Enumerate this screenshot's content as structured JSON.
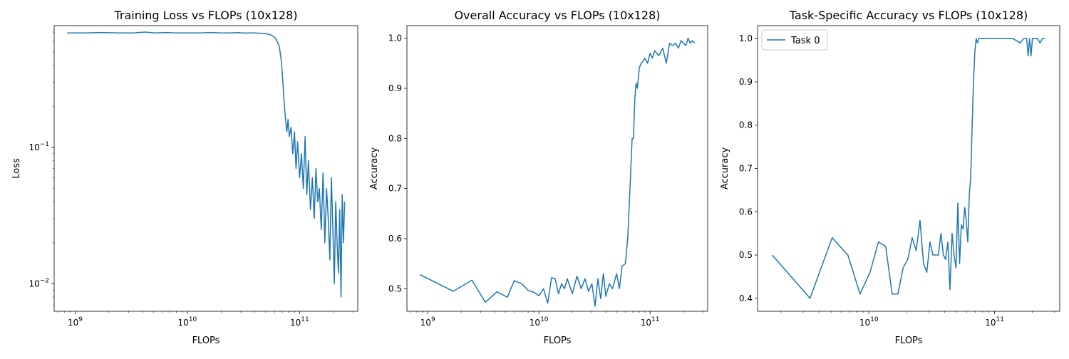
{
  "colors": {
    "line": "#1f77b4",
    "axis": "#000000",
    "background": "#ffffff"
  },
  "chart_data": [
    {
      "type": "line",
      "title": "Training Loss vs FLOPs (10x128)",
      "xlabel": "FLOPs",
      "ylabel": "Loss",
      "xscale": "log",
      "yscale": "log",
      "xlim": [
        650000000.0,
        330000000000.0
      ],
      "ylim": [
        0.0063,
        0.78
      ],
      "xticks": [
        {
          "value": 1000000000.0,
          "base": "10",
          "exp": "9"
        },
        {
          "value": 10000000000.0,
          "base": "10",
          "exp": "10"
        },
        {
          "value": 100000000000.0,
          "base": "10",
          "exp": "11"
        }
      ],
      "yticks": [
        {
          "value": 0.1,
          "base": "10",
          "exp": "−1"
        },
        {
          "value": 0.01,
          "base": "10",
          "exp": "−2"
        }
      ],
      "grid": false,
      "legend": null,
      "series": [
        {
          "x": [
            850000000.0,
            1200000000.0,
            1700000000.0,
            2500000000.0,
            3300000000.0,
            4200000000.0,
            5200000000.0,
            6500000000.0,
            8000000000.0,
            10000000000.0,
            13000000000.0,
            16000000000.0,
            20000000000.0,
            24000000000.0,
            28000000000.0,
            32000000000.0,
            36000000000.0,
            40000000000.0,
            45000000000.0,
            50000000000.0,
            55000000000.0,
            60000000000.0,
            63000000000.0,
            66000000000.0,
            69000000000.0,
            71000000000.0,
            73000000000.0,
            75000000000.0,
            77000000000.0,
            79000000000.0,
            81000000000.0,
            84000000000.0,
            87000000000.0,
            90000000000.0,
            93000000000.0,
            96000000000.0,
            100000000000.0,
            104000000000.0,
            108000000000.0,
            112000000000.0,
            116000000000.0,
            120000000000.0,
            125000000000.0,
            130000000000.0,
            135000000000.0,
            140000000000.0,
            145000000000.0,
            150000000000.0,
            156000000000.0,
            162000000000.0,
            168000000000.0,
            174000000000.0,
            180000000000.0,
            186000000000.0,
            192000000000.0,
            198000000000.0,
            204000000000.0,
            210000000000.0,
            216000000000.0,
            222000000000.0,
            228000000000.0,
            234000000000.0,
            240000000000.0,
            246000000000.0,
            252000000000.0
          ],
          "y": [
            0.69,
            0.69,
            0.695,
            0.69,
            0.69,
            0.7,
            0.69,
            0.695,
            0.69,
            0.69,
            0.69,
            0.695,
            0.69,
            0.69,
            0.693,
            0.688,
            0.69,
            0.69,
            0.685,
            0.68,
            0.67,
            0.64,
            0.6,
            0.55,
            0.42,
            0.3,
            0.21,
            0.16,
            0.13,
            0.16,
            0.12,
            0.14,
            0.09,
            0.13,
            0.07,
            0.11,
            0.06,
            0.09,
            0.05,
            0.12,
            0.045,
            0.08,
            0.035,
            0.06,
            0.03,
            0.07,
            0.04,
            0.05,
            0.025,
            0.065,
            0.02,
            0.05,
            0.03,
            0.015,
            0.06,
            0.025,
            0.01,
            0.04,
            0.02,
            0.012,
            0.035,
            0.008,
            0.045,
            0.02,
            0.04
          ]
        }
      ]
    },
    {
      "type": "line",
      "title": "Overall Accuracy vs FLOPs (10x128)",
      "xlabel": "FLOPs",
      "ylabel": "Accuracy",
      "xscale": "log",
      "yscale": "linear",
      "xlim": [
        650000000.0,
        330000000000.0
      ],
      "ylim": [
        0.455,
        1.025
      ],
      "xticks": [
        {
          "value": 1000000000.0,
          "base": "10",
          "exp": "9"
        },
        {
          "value": 10000000000.0,
          "base": "10",
          "exp": "10"
        },
        {
          "value": 100000000000.0,
          "base": "10",
          "exp": "11"
        }
      ],
      "yticks": [
        {
          "value": 0.5,
          "label": "0.5"
        },
        {
          "value": 0.6,
          "label": "0.6"
        },
        {
          "value": 0.7,
          "label": "0.7"
        },
        {
          "value": 0.8,
          "label": "0.8"
        },
        {
          "value": 0.9,
          "label": "0.9"
        },
        {
          "value": 1.0,
          "label": "1.0"
        }
      ],
      "grid": false,
      "legend": null,
      "series": [
        {
          "x": [
            850000000.0,
            1700000000.0,
            2500000000.0,
            3300000000.0,
            4200000000.0,
            5200000000.0,
            6000000000.0,
            7000000000.0,
            8000000000.0,
            9000000000.0,
            10000000000.0,
            11000000000.0,
            12000000000.0,
            13000000000.0,
            14000000000.0,
            15000000000.0,
            16000000000.0,
            17000000000.0,
            18000000000.0,
            20000000000.0,
            22000000000.0,
            24000000000.0,
            26000000000.0,
            28000000000.0,
            30000000000.0,
            32000000000.0,
            34000000000.0,
            36000000000.0,
            38000000000.0,
            40000000000.0,
            43000000000.0,
            46000000000.0,
            50000000000.0,
            53000000000.0,
            56000000000.0,
            60000000000.0,
            63000000000.0,
            66000000000.0,
            69000000000.0,
            71000000000.0,
            73000000000.0,
            75000000000.0,
            77000000000.0,
            80000000000.0,
            83000000000.0,
            87000000000.0,
            90000000000.0,
            95000000000.0,
            100000000000.0,
            105000000000.0,
            110000000000.0,
            115000000000.0,
            120000000000.0,
            130000000000.0,
            140000000000.0,
            150000000000.0,
            160000000000.0,
            170000000000.0,
            180000000000.0,
            190000000000.0,
            200000000000.0,
            210000000000.0,
            220000000000.0,
            230000000000.0,
            240000000000.0,
            252000000000.0
          ],
          "y": [
            0.528,
            0.495,
            0.517,
            0.473,
            0.494,
            0.483,
            0.516,
            0.51,
            0.497,
            0.493,
            0.486,
            0.5,
            0.471,
            0.522,
            0.52,
            0.49,
            0.51,
            0.5,
            0.52,
            0.49,
            0.525,
            0.5,
            0.52,
            0.495,
            0.51,
            0.465,
            0.52,
            0.48,
            0.53,
            0.485,
            0.51,
            0.5,
            0.53,
            0.5,
            0.545,
            0.55,
            0.6,
            0.7,
            0.8,
            0.8,
            0.88,
            0.91,
            0.9,
            0.94,
            0.95,
            0.955,
            0.96,
            0.95,
            0.97,
            0.96,
            0.975,
            0.97,
            0.965,
            0.98,
            0.95,
            0.99,
            0.985,
            0.99,
            0.98,
            0.995,
            0.99,
            0.985,
            1.0,
            0.99,
            0.995,
            0.99
          ]
        }
      ]
    },
    {
      "type": "line",
      "title": "Task-Specific Accuracy vs FLOPs (10x128)",
      "xlabel": "FLOPs",
      "ylabel": "Accuracy",
      "xscale": "log",
      "yscale": "linear",
      "xlim": [
        1300000000.0,
        330000000000.0
      ],
      "ylim": [
        0.37,
        1.03
      ],
      "xticks": [
        {
          "value": 10000000000.0,
          "base": "10",
          "exp": "10"
        },
        {
          "value": 100000000000.0,
          "base": "10",
          "exp": "11"
        }
      ],
      "yticks": [
        {
          "value": 0.4,
          "label": "0.4"
        },
        {
          "value": 0.5,
          "label": "0.5"
        },
        {
          "value": 0.6,
          "label": "0.6"
        },
        {
          "value": 0.7,
          "label": "0.7"
        },
        {
          "value": 0.8,
          "label": "0.8"
        },
        {
          "value": 0.9,
          "label": "0.9"
        },
        {
          "value": 1.0,
          "label": "1.0"
        }
      ],
      "grid": false,
      "legend": "top-left",
      "series": [
        {
          "name": "Task 0",
          "x": [
            1700000000.0,
            3400000000.0,
            5100000000.0,
            6800000000.0,
            8500000000.0,
            10200000000.0,
            11900000000.0,
            13600000000.0,
            15300000000.0,
            17000000000.0,
            18700000000.0,
            20400000000.0,
            22100000000.0,
            23800000000.0,
            25500000000.0,
            27200000000.0,
            28900000000.0,
            30600000000.0,
            32300000000.0,
            34000000000.0,
            35700000000.0,
            37400000000.0,
            39100000000.0,
            40800000000.0,
            42500000000.0,
            44200000000.0,
            45900000000.0,
            47600000000.0,
            49300000000.0,
            51000000000.0,
            52700000000.0,
            54400000000.0,
            56100000000.0,
            57800000000.0,
            59500000000.0,
            61200000000.0,
            62900000000.0,
            64600000000.0,
            66300000000.0,
            68000000000.0,
            69700000000.0,
            71400000000.0,
            73100000000.0,
            74800000000.0,
            76500000000.0,
            80000000000.0,
            90000000000.0,
            100000000000.0,
            120000000000.0,
            140000000000.0,
            160000000000.0,
            170000000000.0,
            180000000000.0,
            185000000000.0,
            190000000000.0,
            195000000000.0,
            200000000000.0,
            210000000000.0,
            220000000000.0,
            230000000000.0,
            240000000000.0,
            252000000000.0
          ],
          "y": [
            0.5,
            0.4,
            0.54,
            0.5,
            0.41,
            0.46,
            0.53,
            0.52,
            0.41,
            0.41,
            0.47,
            0.49,
            0.54,
            0.51,
            0.58,
            0.48,
            0.46,
            0.53,
            0.5,
            0.5,
            0.5,
            0.55,
            0.5,
            0.49,
            0.53,
            0.42,
            0.55,
            0.5,
            0.47,
            0.62,
            0.48,
            0.57,
            0.56,
            0.61,
            0.58,
            0.53,
            0.64,
            0.68,
            0.8,
            0.9,
            0.97,
            1.0,
            0.99,
            1.0,
            1.0,
            1.0,
            1.0,
            1.0,
            1.0,
            1.0,
            0.99,
            1.0,
            1.0,
            0.96,
            1.0,
            0.96,
            1.0,
            1.0,
            1.0,
            0.99,
            1.0,
            1.0
          ]
        }
      ]
    }
  ]
}
